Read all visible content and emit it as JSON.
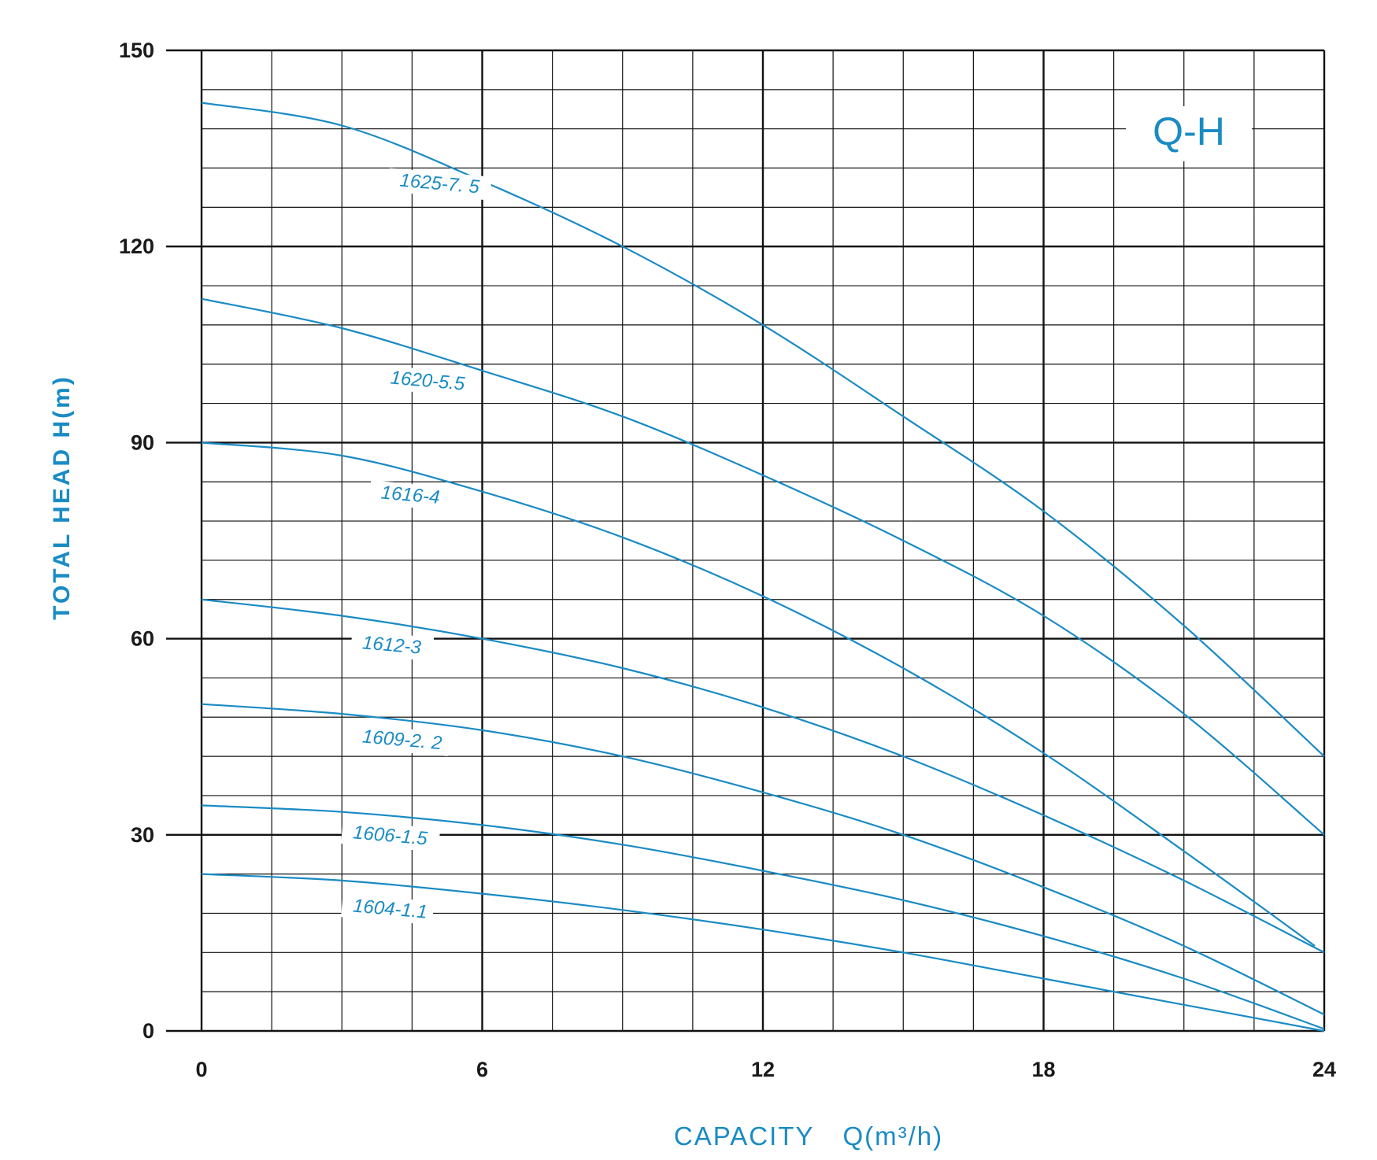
{
  "chart_data": {
    "type": "line",
    "title": "Q-H",
    "xlabel": "CAPACITY  Q(m³/h)",
    "xlabel_main": "CAPACITY",
    "xlabel_unit": "Q(m³/h)",
    "ylabel": "TOTAL HEAD H(m)",
    "xlim": [
      0,
      24
    ],
    "ylim": [
      0,
      150
    ],
    "x_ticks": [
      "0",
      "6",
      "12",
      "18",
      "24"
    ],
    "y_ticks": [
      "0",
      "30",
      "60",
      "90",
      "120",
      "150"
    ],
    "x_minor_step": 1.5,
    "y_minor_step": 6,
    "grid": true,
    "line_color": "#1a8bc4",
    "series": [
      {
        "name": "1625-7. 5",
        "x": [
          0,
          3,
          6,
          9,
          12,
          15,
          18,
          21,
          24
        ],
        "y": [
          142,
          138.5,
          130,
          120,
          108,
          94,
          79.5,
          62,
          42
        ]
      },
      {
        "name": "1620-5.5",
        "x": [
          0,
          3,
          6,
          9,
          12,
          15,
          18,
          21,
          24
        ],
        "y": [
          112,
          107.5,
          101,
          94,
          85,
          75,
          63.5,
          48.5,
          30
        ]
      },
      {
        "name": "1616-4",
        "x": [
          0,
          3,
          6,
          9,
          12,
          15,
          18,
          21,
          23.8
        ],
        "y": [
          90,
          88,
          82.5,
          75.5,
          66.5,
          55.5,
          42.5,
          27.5,
          13
        ]
      },
      {
        "name": "1612-3",
        "x": [
          0,
          3,
          6,
          9,
          12,
          15,
          18,
          21,
          24
        ],
        "y": [
          66,
          63.5,
          60,
          55.5,
          49.5,
          42,
          33,
          23,
          12
        ]
      },
      {
        "name": "1609-2. 2",
        "x": [
          0,
          3,
          6,
          9,
          12,
          15,
          18,
          21,
          24
        ],
        "y": [
          50,
          48.5,
          46,
          42,
          36.5,
          30,
          22,
          13,
          2.5
        ]
      },
      {
        "name": "1606-1.5",
        "x": [
          0,
          3,
          6,
          9,
          12,
          15,
          18,
          21,
          24
        ],
        "y": [
          34.5,
          33.5,
          31.5,
          28.5,
          24.5,
          20,
          14.5,
          8,
          0.3
        ]
      },
      {
        "name": "1604-1.1",
        "x": [
          0,
          3,
          6,
          9,
          12,
          15,
          18,
          21,
          24
        ],
        "y": [
          24,
          23,
          21,
          18.5,
          15.5,
          12,
          8,
          4,
          0
        ]
      }
    ]
  }
}
